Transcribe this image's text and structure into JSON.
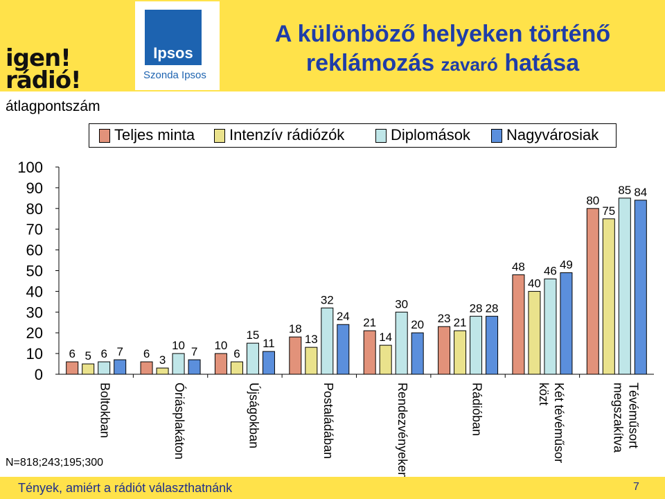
{
  "branding": {
    "igen_logo_line1": "igen!",
    "igen_logo_line2": "rádió!",
    "ipsos_logo": "Ipsos",
    "ipsos_sub": "Szonda Ipsos"
  },
  "title_line1": "A különböző helyeken történő",
  "title_line2_a": "reklámozás ",
  "title_line2_b": "zavaró",
  "title_line2_c": " hatása",
  "y_unit_label": "átlagpontszám",
  "sample_note": "N=818;243;195;300",
  "footer_text": "Tények, amiért a rádiót választhatnánk",
  "page_number": "7",
  "colors": {
    "band": "#ffe24a",
    "title": "#1f3da8",
    "series": [
      "#e2927a",
      "#eae28c",
      "#bfe6e8",
      "#5b8fdc"
    ]
  },
  "chart_data": {
    "type": "bar",
    "ylim": [
      0,
      100
    ],
    "yticks": [
      0,
      10,
      20,
      30,
      40,
      50,
      60,
      70,
      80,
      90,
      100
    ],
    "legend_position": "top",
    "categories": [
      [
        "Boltokban"
      ],
      [
        "Óriásplakáton"
      ],
      [
        "Újságokban"
      ],
      [
        "Postaládában"
      ],
      [
        "Rendezvényeken"
      ],
      [
        "Rádióban"
      ],
      [
        "Két tévéműsor",
        "közt"
      ],
      [
        "Tévéműsort",
        "megszakítva"
      ]
    ],
    "series": [
      {
        "name": "Teljes minta",
        "values": [
          6,
          6,
          10,
          18,
          21,
          23,
          48,
          80
        ]
      },
      {
        "name": "Intenzív rádiózók",
        "values": [
          5,
          3,
          6,
          13,
          14,
          21,
          40,
          75
        ]
      },
      {
        "name": "Diplomások",
        "values": [
          6,
          10,
          15,
          32,
          30,
          28,
          46,
          85
        ]
      },
      {
        "name": "Nagyvárosiak",
        "values": [
          7,
          7,
          11,
          24,
          20,
          28,
          49,
          84
        ]
      }
    ]
  }
}
